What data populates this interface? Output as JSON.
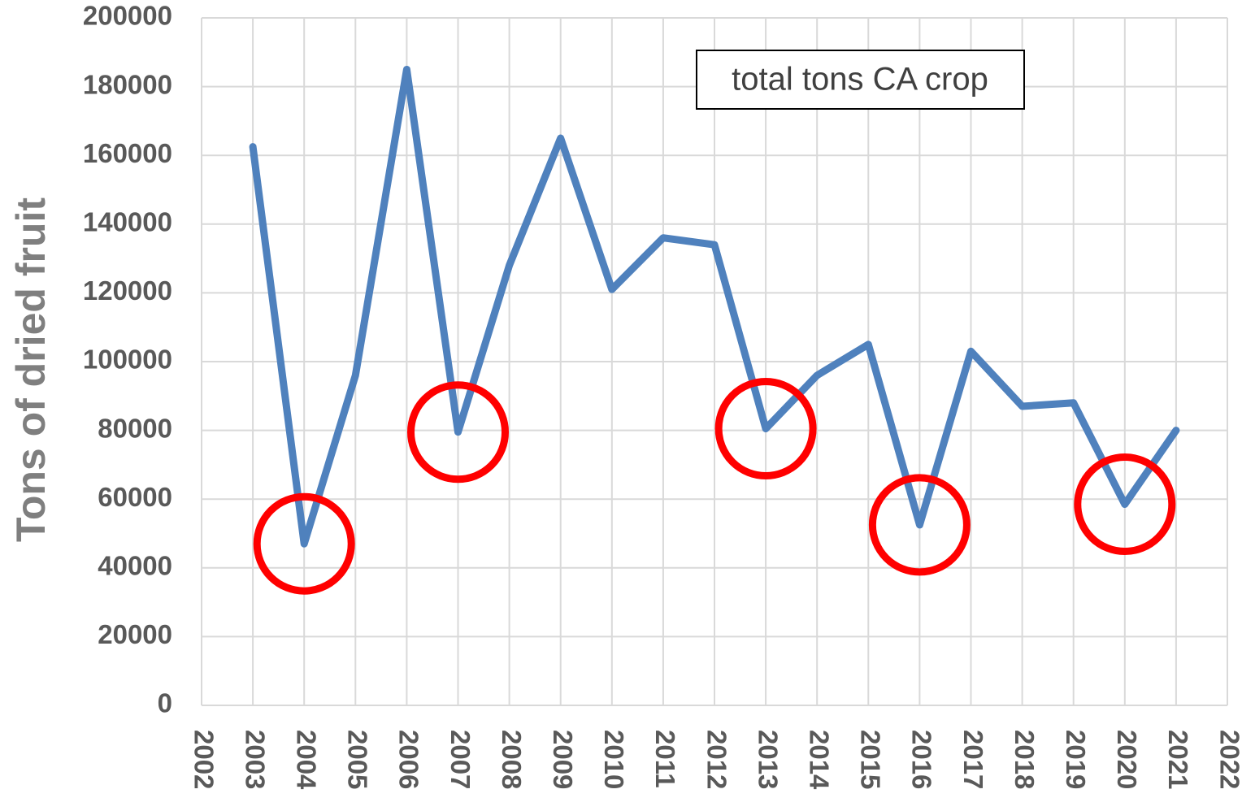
{
  "chart_data": {
    "type": "line",
    "ylabel": "Tons of dried fruit",
    "annotation": "total tons CA crop",
    "x": [
      2003,
      2004,
      2005,
      2006,
      2007,
      2008,
      2009,
      2010,
      2011,
      2012,
      2013,
      2014,
      2015,
      2016,
      2017,
      2018,
      2019,
      2020,
      2021
    ],
    "series": [
      {
        "color": "#4f81bd",
        "values": [
          162500,
          47000,
          96000,
          185000,
          79500,
          128000,
          165000,
          121000,
          136000,
          134000,
          80500,
          96000,
          105000,
          52500,
          103000,
          87000,
          88000,
          58500,
          80000
        ]
      }
    ],
    "highlight_x": [
      2004,
      2007,
      2013,
      2016,
      2020
    ],
    "highlight_color": "#ff0000",
    "xlim": [
      2002,
      2022
    ],
    "xticks": [
      2002,
      2003,
      2004,
      2005,
      2006,
      2007,
      2008,
      2009,
      2010,
      2011,
      2012,
      2013,
      2014,
      2015,
      2016,
      2017,
      2018,
      2019,
      2020,
      2021,
      2022
    ],
    "ylim": [
      0,
      200000
    ],
    "yticks": [
      0,
      20000,
      40000,
      60000,
      80000,
      100000,
      120000,
      140000,
      160000,
      180000,
      200000
    ],
    "grid": true
  }
}
